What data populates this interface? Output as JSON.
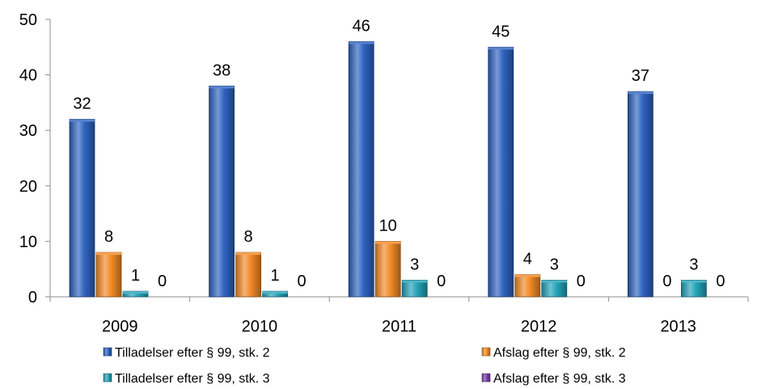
{
  "chart_data": {
    "type": "bar",
    "title": "",
    "xlabel": "",
    "ylabel": "",
    "categories": [
      "2009",
      "2010",
      "2011",
      "2012",
      "2013"
    ],
    "ylim": [
      0,
      50
    ],
    "yticks": [
      "0",
      "10",
      "20",
      "30",
      "40",
      "50"
    ],
    "grid": false,
    "legend_position": "bottom",
    "series": [
      {
        "name": "Tilladelser efter § 99, stk. 2",
        "values": [
          32,
          38,
          46,
          45,
          37
        ],
        "color": "#2e63c0"
      },
      {
        "name": "Afslag efter § 99, stk. 2",
        "values": [
          8,
          8,
          10,
          4,
          0
        ],
        "color": "#f28a26"
      },
      {
        "name": "Tilladelser efter § 99, stk. 3",
        "values": [
          1,
          1,
          3,
          3,
          3
        ],
        "color": "#23a3b8"
      },
      {
        "name": "Afslag efter § 99, stk. 3",
        "values": [
          0,
          0,
          0,
          0,
          0
        ],
        "color": "#7b3fa8"
      }
    ]
  }
}
